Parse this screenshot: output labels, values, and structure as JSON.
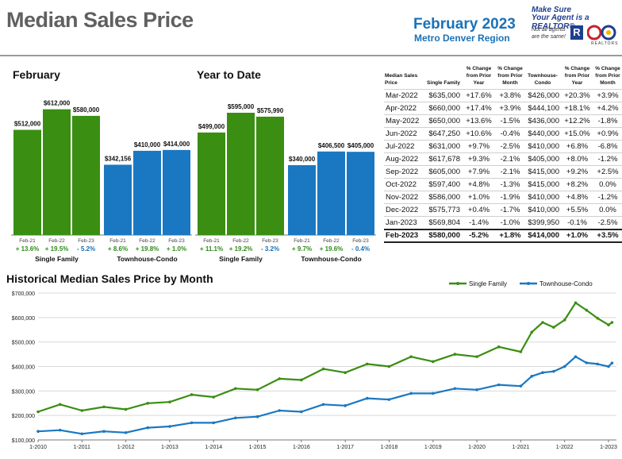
{
  "header": {
    "title": "Median Sales Price",
    "period": "February 2023",
    "region": "Metro Denver Region",
    "ad_line1": "Make Sure",
    "ad_line2": "Your Agent is a REALTOR®",
    "ad_small1": "Not all agents",
    "ad_small2": "are the same!",
    "logo_mark": "R",
    "logo_caption": "REALTORS"
  },
  "colors": {
    "single_family": "#3a8e12",
    "townhouse": "#1a78c2",
    "positive": "#2f8a1a",
    "negative": "#1a6fb5"
  },
  "chart_data": [
    {
      "type": "bar",
      "title": "February",
      "categories": [
        "Feb-21",
        "Feb-22",
        "Feb-23",
        "Feb-21",
        "Feb-22",
        "Feb-23"
      ],
      "groups": [
        "Single Family",
        "Townhouse-Condo"
      ],
      "values": [
        512000,
        612000,
        580000,
        342156,
        410000,
        414000
      ],
      "value_labels": [
        "$512,000",
        "$612,000",
        "$580,000",
        "$342,156",
        "$410,000",
        "$414,000"
      ],
      "pct_changes": [
        "+ 13.6%",
        "+ 19.5%",
        "- 5.2%",
        "+ 8.6%",
        "+ 19.8%",
        "+ 1.0%"
      ],
      "ylim": [
        0,
        680000
      ]
    },
    {
      "type": "bar",
      "title": "Year to Date",
      "categories": [
        "Feb-21",
        "Feb-22",
        "Feb-23",
        "Feb-21",
        "Feb-22",
        "Feb-23"
      ],
      "groups": [
        "Single Family",
        "Townhouse-Condo"
      ],
      "values": [
        499000,
        595000,
        575990,
        340000,
        406500,
        405000
      ],
      "value_labels": [
        "$499,000",
        "$595,000",
        "$575,990",
        "$340,000",
        "$406,500",
        "$405,000"
      ],
      "pct_changes": [
        "+ 11.1%",
        "+ 19.2%",
        "- 3.2%",
        "+ 9.7%",
        "+ 19.6%",
        "- 0.4%"
      ],
      "ylim": [
        0,
        680000
      ]
    },
    {
      "type": "table",
      "columns": [
        "Median Sales Price",
        "Single Family",
        "% Change from Prior Year",
        "% Change from Prior Month",
        "Townhouse-Condo",
        "% Change from Prior Year",
        "% Change from Prior Month"
      ],
      "rows": [
        [
          "Mar-2022",
          "$635,000",
          "+17.6%",
          "+3.8%",
          "$426,000",
          "+20.3%",
          "+3.9%"
        ],
        [
          "Apr-2022",
          "$660,000",
          "+17.4%",
          "+3.9%",
          "$444,100",
          "+18.1%",
          "+4.2%"
        ],
        [
          "May-2022",
          "$650,000",
          "+13.6%",
          "-1.5%",
          "$436,000",
          "+12.2%",
          "-1.8%"
        ],
        [
          "Jun-2022",
          "$647,250",
          "+10.6%",
          "-0.4%",
          "$440,000",
          "+15.0%",
          "+0.9%"
        ],
        [
          "Jul-2022",
          "$631,000",
          "+9.7%",
          "-2.5%",
          "$410,000",
          "+6.8%",
          "-6.8%"
        ],
        [
          "Aug-2022",
          "$617,678",
          "+9.3%",
          "-2.1%",
          "$405,000",
          "+8.0%",
          "-1.2%"
        ],
        [
          "Sep-2022",
          "$605,000",
          "+7.9%",
          "-2.1%",
          "$415,000",
          "+9.2%",
          "+2.5%"
        ],
        [
          "Oct-2022",
          "$597,400",
          "+4.8%",
          "-1.3%",
          "$415,000",
          "+8.2%",
          "0.0%"
        ],
        [
          "Nov-2022",
          "$586,000",
          "+1.0%",
          "-1.9%",
          "$410,000",
          "+4.8%",
          "-1.2%"
        ],
        [
          "Dec-2022",
          "$575,773",
          "+0.4%",
          "-1.7%",
          "$410,000",
          "+5.5%",
          "0.0%"
        ],
        [
          "Jan-2023",
          "$569,804",
          "-1.4%",
          "-1.0%",
          "$399,950",
          "-0.1%",
          "-2.5%"
        ],
        [
          "Feb-2023",
          "$580,000",
          "-5.2%",
          "+1.8%",
          "$414,000",
          "+1.0%",
          "+3.5%"
        ]
      ]
    },
    {
      "type": "line",
      "title": "Historical Median Sales Price by Month",
      "x_ticks": [
        "1-2010",
        "1-2011",
        "1-2012",
        "1-2013",
        "1-2014",
        "1-2015",
        "1-2016",
        "1-2017",
        "1-2018",
        "1-2019",
        "1-2020",
        "1-2021",
        "1-2022",
        "1-2023"
      ],
      "y_ticks": [
        "$100,000",
        "$200,000",
        "$300,000",
        "$400,000",
        "$500,000",
        "$600,000",
        "$700,000"
      ],
      "ylim": [
        100000,
        700000
      ],
      "legend": "top-right",
      "series": [
        {
          "name": "Single Family",
          "color": "#3a8e12",
          "x": [
            2010.0,
            2010.5,
            2011.0,
            2011.5,
            2012.0,
            2012.5,
            2013.0,
            2013.5,
            2014.0,
            2014.5,
            2015.0,
            2015.5,
            2016.0,
            2016.5,
            2017.0,
            2017.5,
            2018.0,
            2018.5,
            2019.0,
            2019.5,
            2020.0,
            2020.5,
            2021.0,
            2021.25,
            2021.5,
            2021.75,
            2022.0,
            2022.25,
            2022.5,
            2022.75,
            2023.0,
            2023.08
          ],
          "values": [
            215000,
            245000,
            220000,
            235000,
            225000,
            250000,
            255000,
            285000,
            275000,
            310000,
            305000,
            350000,
            345000,
            390000,
            375000,
            410000,
            400000,
            440000,
            420000,
            450000,
            440000,
            480000,
            460000,
            540000,
            580000,
            560000,
            590000,
            660000,
            630000,
            597000,
            570000,
            580000
          ]
        },
        {
          "name": "Townhouse-Condo",
          "color": "#1a78c2",
          "x": [
            2010.0,
            2010.5,
            2011.0,
            2011.5,
            2012.0,
            2012.5,
            2013.0,
            2013.5,
            2014.0,
            2014.5,
            2015.0,
            2015.5,
            2016.0,
            2016.5,
            2017.0,
            2017.5,
            2018.0,
            2018.5,
            2019.0,
            2019.5,
            2020.0,
            2020.5,
            2021.0,
            2021.25,
            2021.5,
            2021.75,
            2022.0,
            2022.25,
            2022.5,
            2022.75,
            2023.0,
            2023.08
          ],
          "values": [
            135000,
            140000,
            125000,
            135000,
            130000,
            150000,
            155000,
            170000,
            170000,
            190000,
            195000,
            220000,
            215000,
            245000,
            240000,
            270000,
            265000,
            290000,
            290000,
            310000,
            305000,
            325000,
            320000,
            360000,
            375000,
            380000,
            400000,
            440000,
            415000,
            410000,
            400000,
            414000
          ]
        }
      ]
    }
  ]
}
